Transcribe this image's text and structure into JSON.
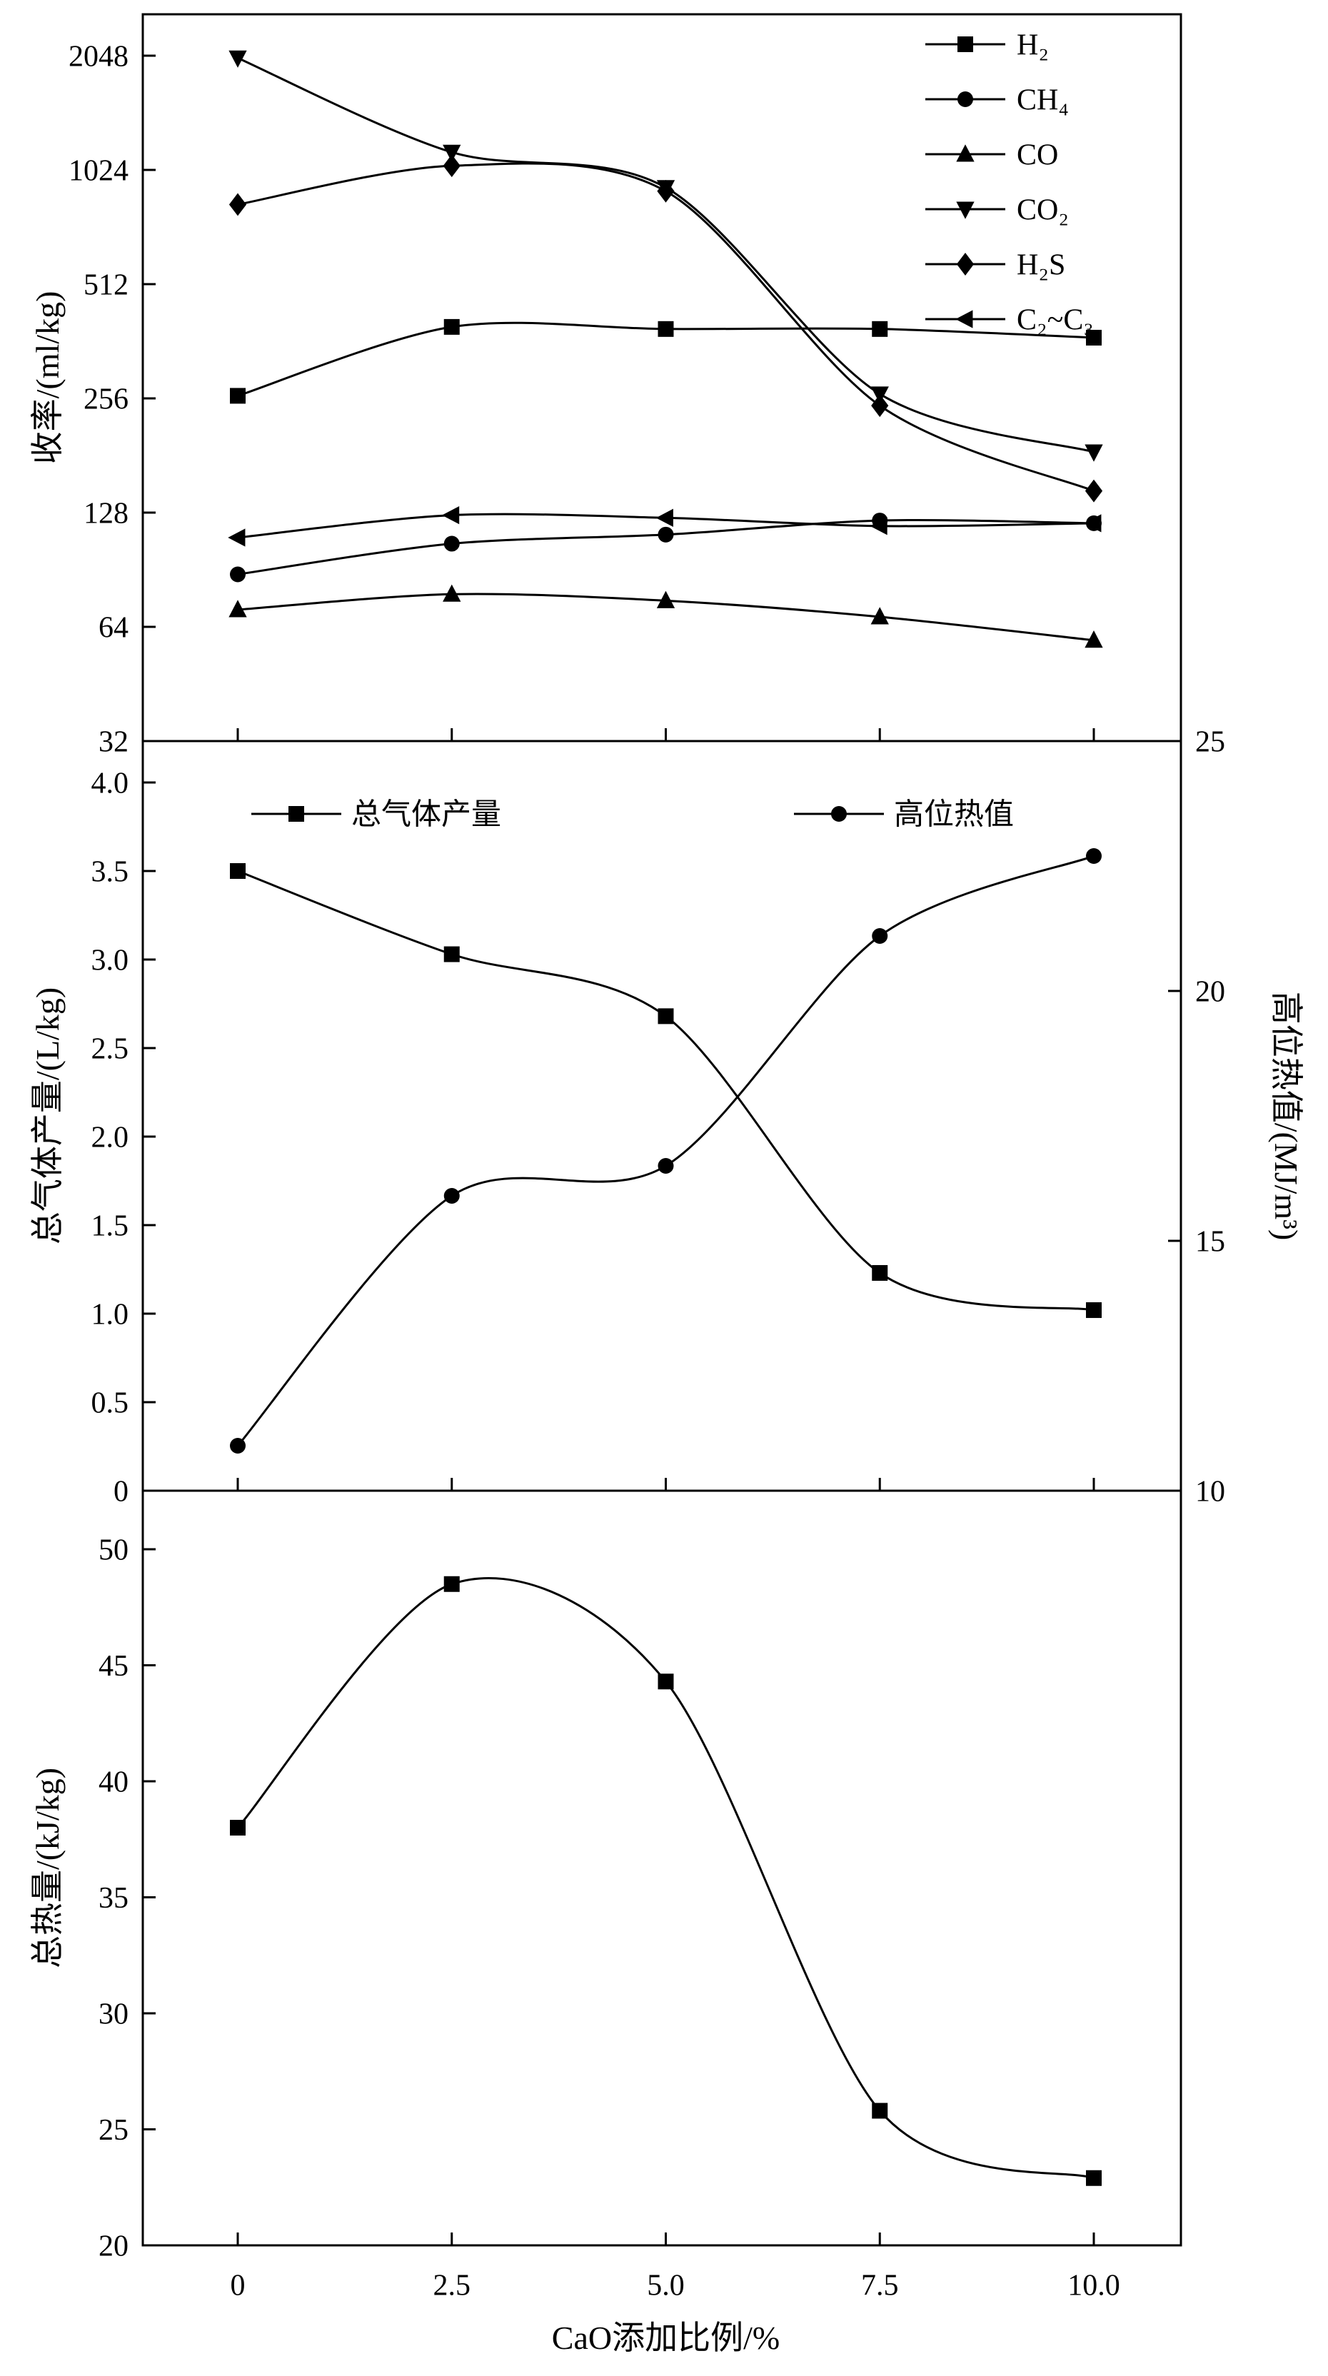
{
  "figure": {
    "background": "#ffffff",
    "line_color": "#000000",
    "xlabel": "CaO添加比例/%",
    "x_tick_values": [
      0,
      2.5,
      5.0,
      7.5,
      10.0
    ],
    "x_tick_labels": [
      "0",
      "2.5",
      "5.0",
      "7.5",
      "10.0"
    ]
  },
  "chart_data": [
    {
      "type": "line",
      "panel": "top",
      "ylabel": "收率/(ml/kg)",
      "yscale": "log2",
      "ylim": [
        32,
        2600
      ],
      "y_tick_values": [
        32,
        64,
        128,
        256,
        512,
        1024,
        2048
      ],
      "y_tick_labels": [
        "32",
        "64",
        "128",
        "256",
        "512",
        "1024",
        "2048"
      ],
      "x": [
        0,
        2.5,
        5.0,
        7.5,
        10.0
      ],
      "legend_position": "top-right",
      "series": [
        {
          "name": "H₂",
          "marker": "square",
          "values": [
            260,
            395,
            390,
            390,
            370
          ]
        },
        {
          "name": "CH₄",
          "marker": "circle",
          "values": [
            88,
            106,
            112,
            122,
            120
          ]
        },
        {
          "name": "CO",
          "marker": "triangle-up",
          "values": [
            71,
            78,
            75,
            68,
            59
          ]
        },
        {
          "name": "CO₂",
          "marker": "triangle-down",
          "values": [
            2020,
            1140,
            920,
            263,
            185
          ]
        },
        {
          "name": "H₂S",
          "marker": "diamond",
          "values": [
            830,
            1050,
            900,
            245,
            146
          ]
        },
        {
          "name": "C₂~C₃",
          "marker": "triangle-left",
          "values": [
            110,
            126,
            124,
            118,
            120
          ]
        }
      ]
    },
    {
      "type": "line",
      "panel": "middle",
      "ylabel_left": "总气体产量/(L/kg)",
      "ylabel_right": "高位热值/(MJ/m³)",
      "ylim_left": [
        0,
        4.23
      ],
      "ylim_right": [
        10,
        25
      ],
      "y_tick_values_left": [
        0,
        0.5,
        1.0,
        1.5,
        2.0,
        2.5,
        3.0,
        3.5,
        4.0
      ],
      "y_tick_labels_left": [
        "0",
        "0.5",
        "1.0",
        "1.5",
        "2.0",
        "2.5",
        "3.0",
        "3.5",
        "4.0"
      ],
      "y_tick_values_right": [
        10,
        15,
        20,
        25
      ],
      "y_tick_labels_right": [
        "10",
        "15",
        "20",
        "25"
      ],
      "x": [
        0,
        2.5,
        5.0,
        7.5,
        10.0
      ],
      "legend_position": "top-inside",
      "series": [
        {
          "name": "总气体产量",
          "marker": "square",
          "axis": "left",
          "values": [
            3.5,
            3.03,
            2.68,
            1.23,
            1.02
          ]
        },
        {
          "name": "高位热值",
          "marker": "circle",
          "axis": "right",
          "values": [
            10.9,
            15.9,
            16.5,
            21.1,
            22.7
          ]
        }
      ]
    },
    {
      "type": "line",
      "panel": "bottom",
      "ylabel": "总热量/(kJ/kg)",
      "ylim": [
        20,
        52.5
      ],
      "y_tick_values": [
        20,
        25,
        30,
        35,
        40,
        45,
        50
      ],
      "y_tick_labels": [
        "20",
        "25",
        "30",
        "35",
        "40",
        "45",
        "50"
      ],
      "x": [
        0,
        2.5,
        5.0,
        7.5,
        10.0
      ],
      "legend_position": "none",
      "series": [
        {
          "name": "总热量",
          "marker": "square",
          "values": [
            38.0,
            48.5,
            44.3,
            25.8,
            22.9
          ]
        }
      ]
    }
  ]
}
